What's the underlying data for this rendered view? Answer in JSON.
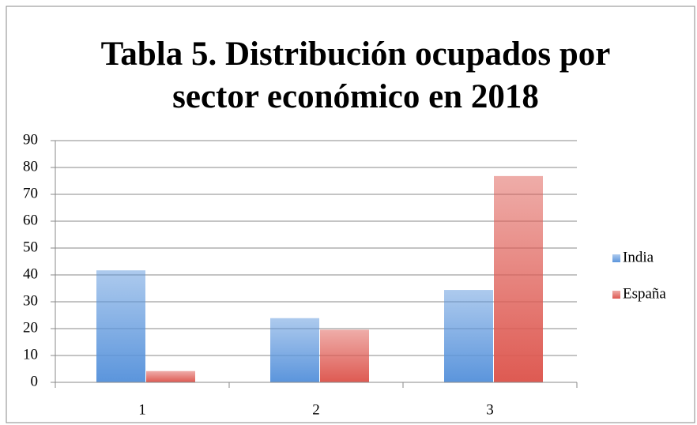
{
  "chart_data": {
    "type": "bar",
    "title": "Tabla 5. Distribución ocupados por sector económico en 2018",
    "categories": [
      "1",
      "2",
      "3"
    ],
    "series": [
      {
        "name": "India",
        "color": "#5b95dc",
        "values": [
          41.7,
          23.9,
          34.4
        ]
      },
      {
        "name": "España",
        "color": "#de5a52",
        "values": [
          4.2,
          19.6,
          76.8
        ]
      }
    ],
    "ylim": [
      0,
      90
    ],
    "yticks": [
      0,
      10,
      20,
      30,
      40,
      50,
      60,
      70,
      80,
      90
    ],
    "grid": true,
    "legend": "right"
  }
}
